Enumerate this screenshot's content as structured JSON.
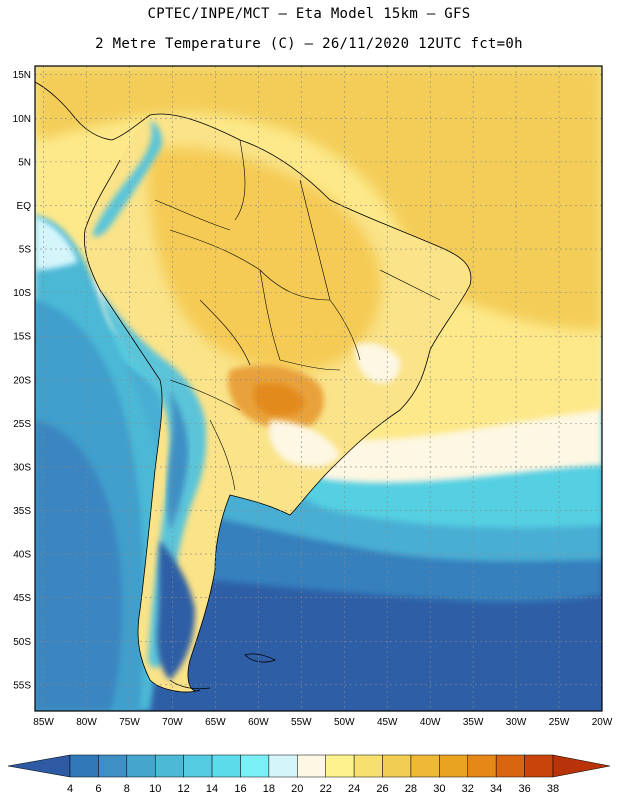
{
  "header": {
    "line1": "CPTEC/INPE/MCT – Eta Model 15km – GFS",
    "line2": "2 Metre Temperature (C) – 26/11/2020 12UTC fct=0h"
  },
  "map": {
    "lat_labels": [
      "15N",
      "10N",
      "5N",
      "EQ",
      "5S",
      "10S",
      "15S",
      "20S",
      "25S",
      "30S",
      "35S",
      "40S",
      "45S",
      "50S",
      "55S"
    ],
    "lon_labels": [
      "85W",
      "80W",
      "75W",
      "70W",
      "65W",
      "60W",
      "55W",
      "50W",
      "45W",
      "40W",
      "35W",
      "30W",
      "25W",
      "20W"
    ],
    "lat_values": [
      15,
      10,
      5,
      0,
      -5,
      -10,
      -15,
      -20,
      -25,
      -30,
      -35,
      -40,
      -45,
      -50,
      -55
    ],
    "lon_values": [
      -85,
      -80,
      -75,
      -70,
      -65,
      -60,
      -55,
      -50,
      -45,
      -40,
      -35,
      -30,
      -25,
      -20
    ],
    "extent": {
      "lon_min": -86,
      "lon_max": -20,
      "lat_min": -58,
      "lat_max": 16
    }
  },
  "colorbar": {
    "labels": [
      "4",
      "6",
      "8",
      "10",
      "12",
      "14",
      "16",
      "18",
      "20",
      "22",
      "24",
      "26",
      "28",
      "30",
      "32",
      "34",
      "36",
      "38"
    ],
    "colors": [
      "#2e5aa4",
      "#3078b8",
      "#3d8fc4",
      "#45a5cd",
      "#4cbad6",
      "#54cbe0",
      "#5cdcea",
      "#7aeff5",
      "#d4f6fb",
      "#fdf7e3",
      "#fdf28e",
      "#f7e070",
      "#f1cd52",
      "#ecb836",
      "#e9a31f",
      "#e58818",
      "#d9660f",
      "#c8440a",
      "#b8330a"
    ],
    "ocean_colors": {
      "north_atlantic": "#f7d35a",
      "central_atlantic": "#fce680",
      "south_atlantic_mid": "#4fd0e3",
      "south_ocean": "#2e5fa6",
      "pacific_mid": "#3f9ccb",
      "continent_base": "#fbe68a",
      "hot_core": "#e9a23b",
      "andes": "#5cc4d9"
    }
  }
}
